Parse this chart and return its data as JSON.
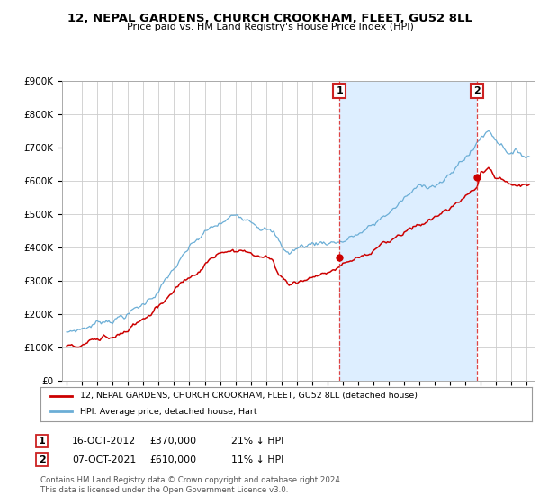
{
  "title1": "12, NEPAL GARDENS, CHURCH CROOKHAM, FLEET, GU52 8LL",
  "title2": "Price paid vs. HM Land Registry's House Price Index (HPI)",
  "ylim": [
    0,
    900000
  ],
  "yticks": [
    0,
    100000,
    200000,
    300000,
    400000,
    500000,
    600000,
    700000,
    800000,
    900000
  ],
  "ytick_labels": [
    "£0",
    "£100K",
    "£200K",
    "£300K",
    "£400K",
    "£500K",
    "£600K",
    "£700K",
    "£800K",
    "£900K"
  ],
  "hpi_color": "#6baed6",
  "price_color": "#cc0000",
  "shade_color": "#ddeeff",
  "sale1_date": 2012.79,
  "sale1_price": 370000,
  "sale2_date": 2021.77,
  "sale2_price": 610000,
  "legend_price_label": "12, NEPAL GARDENS, CHURCH CROOKHAM, FLEET, GU52 8LL (detached house)",
  "legend_hpi_label": "HPI: Average price, detached house, Hart",
  "annotation1_date": "16-OCT-2012",
  "annotation1_price": "£370,000",
  "annotation1_pct": "21% ↓ HPI",
  "annotation2_date": "07-OCT-2021",
  "annotation2_price": "£610,000",
  "annotation2_pct": "11% ↓ HPI",
  "footer": "Contains HM Land Registry data © Crown copyright and database right 2024.\nThis data is licensed under the Open Government Licence v3.0.",
  "bg_color": "#ffffff",
  "grid_color": "#cccccc",
  "xlim_left": 1994.7,
  "xlim_right": 2025.5
}
